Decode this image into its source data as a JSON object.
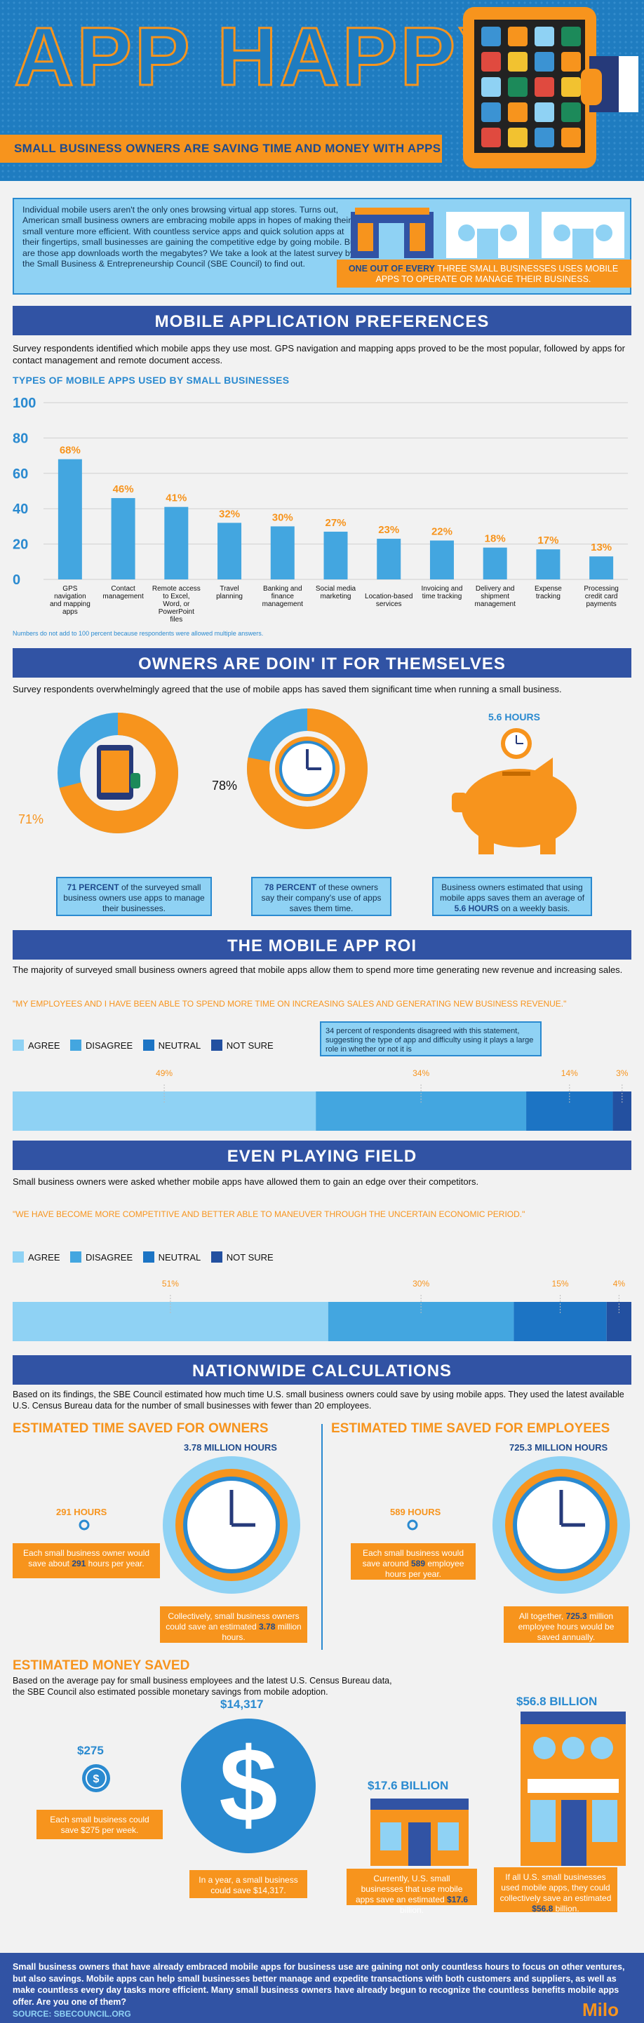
{
  "header": {
    "title": "APP HAPPY",
    "banner": "SMALL BUSINESS OWNERS ARE SAVING TIME AND MONEY WITH APPS"
  },
  "intro": {
    "text": "Individual mobile users aren't the only ones browsing virtual app stores. Turns out, American small business owners are embracing mobile apps in hopes of making their small venture more efficient. With countless service apps and quick solution apps at their fingertips, small businesses are gaining the competitive edge by going mobile. But are those app downloads worth the megabytes? We take a look at the latest survey by the Small Business & Entrepreneurship Council (SBE Council) to find out.",
    "callout_highlight": "ONE OUT OF EVERY",
    "callout_rest": "THREE SMALL BUSINESSES USES MOBILE APPS TO OPERATE OR MANAGE THEIR BUSINESS."
  },
  "sections": {
    "preferences": {
      "title": "MOBILE APPLICATION PREFERENCES",
      "body": "Survey respondents identified which mobile apps they use most. GPS navigation and mapping apps proved to be the most popular, followed by apps for contact management and remote document access.",
      "chart_title": "TYPES OF MOBILE APPS USED BY SMALL BUSINESSES",
      "footnote": "Numbers do not add to 100 percent because respondents were allowed multiple answers."
    },
    "owners": {
      "title": "OWNERS ARE DOIN' IT FOR THEMSELVES",
      "body": "Survey respondents overwhelmingly agreed that the use of mobile apps has saved them significant time when running a small business.",
      "d1_label": "71%",
      "d2_label": "78%",
      "hours_label": "5.6 HOURS",
      "box1_b": "71 PERCENT",
      "box1_t": " of the surveyed small business owners use apps to manage their businesses.",
      "box2_b": "78 PERCENT",
      "box2_t": " of these owners say their company's use of apps saves them time.",
      "box3_t": "Business owners estimated that using mobile apps saves them an average of ",
      "box3_b": "5.6 HOURS",
      "box3_t2": " on a weekly basis."
    },
    "roi": {
      "title": "THE MOBILE APP ROI",
      "body": "The majority of surveyed small business owners agreed that  mobile apps allow them to spend more time generating new revenue and increasing sales.",
      "quote": "\"MY EMPLOYEES AND I HAVE BEEN ABLE TO SPEND MORE TIME ON INCREASING SALES AND GENERATING NEW BUSINESS REVENUE.\"",
      "note": "34 percent of respondents disagreed with this statement, suggesting the type of app and difficulty using it plays a large role in whether or not it is"
    },
    "field": {
      "title": "EVEN PLAYING FIELD",
      "body": "Small business owners were asked whether mobile apps have allowed them to gain an edge over their competitors.",
      "quote": "\"WE HAVE BECOME MORE COMPETITIVE AND BETTER ABLE TO MANEUVER THROUGH THE UNCERTAIN ECONOMIC PERIOD.\""
    },
    "nation": {
      "title": "NATIONWIDE CALCULATIONS",
      "body": "Based on its findings, the SBE Council estimated how much time U.S. small business owners could save by using mobile apps. They used the latest available U.S. Census Bureau data for the number of small businesses with fewer than 20 employees.",
      "owners_h": "ESTIMATED TIME SAVED FOR OWNERS",
      "emp_h": "ESTIMATED TIME SAVED FOR EMPLOYEES",
      "own_total": "3.78 MILLION HOURS",
      "own_each": "291 HOURS",
      "own_box1_a": "Each small business owner would save about ",
      "own_box1_b": "291",
      "own_box1_c": " hours per year.",
      "own_box2_a": "Collectively, small business owners could save an estimated ",
      "own_box2_b": "3.78",
      "own_box2_c": " million hours.",
      "emp_total": "725.3 MILLION HOURS",
      "emp_each": "589 HOURS",
      "emp_box1_a": "Each small business would save around ",
      "emp_box1_b": "589",
      "emp_box1_c": " employee hours per year.",
      "emp_box2_a": "All together, ",
      "emp_box2_b": "725.3",
      "emp_box2_c": " million employee hours would be saved annually.",
      "money_h": "ESTIMATED MONEY SAVED",
      "money_body": "Based on the average pay for small business employees and the latest U.S. Census Bureau data, the SBE Council also estimated possible monetary savings from mobile adoption.",
      "m275": "$275",
      "m275_box": "Each small business could save $275 per week.",
      "m14317": "$14,317",
      "m14317_box": "In a year, a small business could save $14,317.",
      "m176": "$17.6 BILLION",
      "m176_box_a": "Currently, U.S. small businesses that use mobile apps save an estimated ",
      "m176_box_b": "$17.6",
      "m176_box_c": " billion.",
      "m568": "$56.8 BILLION",
      "m568_box_a": "If all U.S. small businesses used mobile apps, they could collectively save an estimated ",
      "m568_box_b": "$56.8",
      "m568_box_c": " billion."
    }
  },
  "footer": {
    "text": "Small business owners that have already embraced mobile apps for business use are gaining not only countless hours to focus on other ventures, but also savings. Mobile apps can help small businesses better manage and expedite transactions with both customers and suppliers, as well as make countless every day tasks more efficient. Many small business owners have already begun to recognize the countless benefits mobile apps offer. Are you one of them?",
    "source": "SOURCE: SBECOUNCIL.ORG",
    "logo": "Milo"
  },
  "colors": {
    "orange": "#f7941d",
    "blue": "#2a8ad0",
    "navy": "#3153a4",
    "agree": "#8fd2f4",
    "disagree": "#43a6e0",
    "neutral": "#1c74c4",
    "notsure": "#2350a0"
  },
  "chart_data": [
    {
      "type": "bar",
      "title": "TYPES OF MOBILE APPS USED BY SMALL BUSINESSES",
      "categories": [
        "GPS navigation and mapping apps",
        "Contact management",
        "Remote access to Excel, Word, or PowerPoint files",
        "Travel planning",
        "Banking and finance management",
        "Social media marketing",
        "Location-based services",
        "Invoicing and time tracking",
        "Delivery and shipment management",
        "Expense tracking",
        "Processing credit card payments"
      ],
      "values": [
        68,
        46,
        41,
        32,
        30,
        27,
        23,
        22,
        18,
        17,
        13
      ],
      "value_labels": [
        "68%",
        "46%",
        "41%",
        "32%",
        "30%",
        "27%",
        "23%",
        "22%",
        "18%",
        "17%",
        "13%"
      ],
      "y_ticks": [
        0,
        20,
        40,
        60,
        80,
        100
      ],
      "ylim": [
        0,
        100
      ],
      "grid": true
    },
    {
      "type": "bar",
      "title": "\"MY EMPLOYEES AND I HAVE BEEN ABLE TO SPEND MORE TIME ON INCREASING SALES AND GENERATING NEW BUSINESS REVENUE.\"",
      "stacked": true,
      "series": [
        {
          "name": "AGREE",
          "values": [
            49
          ],
          "label": "49%"
        },
        {
          "name": "DISAGREE",
          "values": [
            34
          ],
          "label": "34%"
        },
        {
          "name": "NEUTRAL",
          "values": [
            14
          ],
          "label": "14%"
        },
        {
          "name": "NOT SURE",
          "values": [
            3
          ],
          "label": "3%"
        }
      ]
    },
    {
      "type": "bar",
      "title": "\"WE HAVE BECOME MORE COMPETITIVE AND BETTER ABLE TO MANEUVER THROUGH THE UNCERTAIN ECONOMIC PERIOD.\"",
      "stacked": true,
      "series": [
        {
          "name": "AGREE",
          "values": [
            51
          ],
          "label": "51%"
        },
        {
          "name": "DISAGREE",
          "values": [
            30
          ],
          "label": "30%"
        },
        {
          "name": "NEUTRAL",
          "values": [
            15
          ],
          "label": "15%"
        },
        {
          "name": "NOT SURE",
          "values": [
            4
          ],
          "label": "4%"
        }
      ]
    },
    {
      "type": "pie",
      "slices": [
        {
          "label": "71%",
          "value": 71
        },
        {
          "value": 29
        }
      ]
    },
    {
      "type": "pie",
      "slices": [
        {
          "label": "78%",
          "value": 78
        },
        {
          "value": 22
        }
      ]
    }
  ]
}
